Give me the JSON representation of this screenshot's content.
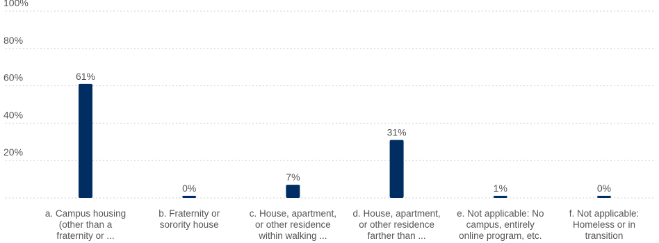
{
  "chart_data": {
    "type": "bar",
    "categories": [
      "a. Campus housing\n(other than a\nfraternity or ...",
      "b. Fraternity or\nsorority house",
      "c. House, apartment,\nor other residence\nwithin walking ...",
      "d. House, apartment,\nor other residence\nfarther than ...",
      "e. Not applicable: No\ncampus, entirely\nonline program, etc.",
      "f. Not applicable:\nHomeless or in\ntransition"
    ],
    "values": [
      61,
      0,
      7,
      31,
      1,
      0
    ],
    "value_labels": [
      "61%",
      "0%",
      "7%",
      "31%",
      "1%",
      "0%"
    ],
    "ylim": [
      0,
      100
    ],
    "yticks": [
      20,
      40,
      60,
      80,
      100
    ],
    "ytick_labels": [
      "20%",
      "40%",
      "60%",
      "80%",
      "100%"
    ],
    "grid": true,
    "bar_color": "#002d62",
    "title": "",
    "xlabel": "",
    "ylabel": ""
  }
}
